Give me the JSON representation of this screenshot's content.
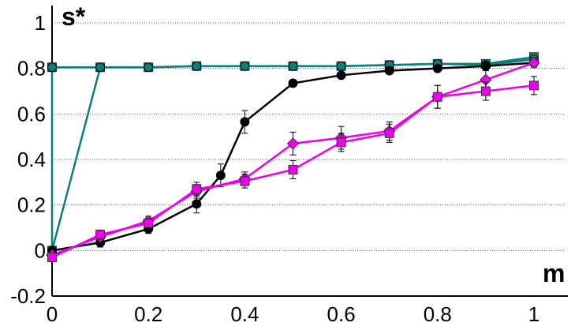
{
  "chart_data": {
    "type": "line",
    "title": "",
    "xlabel": "m",
    "ylabel": "s*",
    "xlim": [
      0,
      1
    ],
    "ylim": [
      -0.2,
      1
    ],
    "grid": true,
    "x_ticks": [
      "0",
      "0.2",
      "0.4",
      "0.6",
      "0.8",
      "1"
    ],
    "y_ticks": [
      "-0.2",
      "0",
      "0.2",
      "0.4",
      "0.6",
      "0.8",
      "1"
    ],
    "y_tick_values": [
      -0.2,
      0,
      0.2,
      0.4,
      0.6,
      0.8,
      1
    ],
    "x_tick_values": [
      0,
      0.2,
      0.4,
      0.6,
      0.8,
      1
    ],
    "series": [
      {
        "color": "#0a7f7a",
        "marker": "square",
        "x": [
          0,
          0,
          0.1,
          0.2,
          0.3,
          0.4,
          0.5,
          0.6,
          0.7,
          0.8,
          0.9,
          1
        ],
        "y": [
          0.805,
          0.0,
          0.805,
          0.805,
          0.81,
          0.81,
          0.81,
          0.81,
          0.815,
          0.82,
          0.82,
          0.85
        ],
        "err": []
      },
      {
        "color": "#0a7f7a",
        "marker": "circle",
        "x": [
          0,
          0.1,
          0.2,
          0.3,
          0.4,
          0.5,
          0.6,
          0.7,
          0.8,
          0.9,
          1
        ],
        "y": [
          0.805,
          0.805,
          0.805,
          0.81,
          0.81,
          0.81,
          0.81,
          0.815,
          0.82,
          0.815,
          0.84
        ],
        "err": []
      },
      {
        "color": "#000000",
        "marker": "circle",
        "x": [
          0,
          0.1,
          0.2,
          0.3,
          0.35,
          0.4,
          0.5,
          0.6,
          0.7,
          0.8,
          0.9,
          1
        ],
        "y": [
          0.0,
          0.035,
          0.095,
          0.205,
          0.33,
          0.565,
          0.735,
          0.77,
          0.79,
          0.8,
          0.81,
          0.825
        ],
        "err": [
          0.01,
          0.02,
          0.02,
          0.04,
          0.05,
          0.05,
          0.01,
          0.01,
          0.01,
          0.01,
          0.01,
          0.01
        ]
      },
      {
        "color": "#ee00ee",
        "marker": "diamond",
        "x": [
          0,
          0.1,
          0.2,
          0.3,
          0.4,
          0.5,
          0.6,
          0.7,
          0.8,
          0.9,
          1
        ],
        "y": [
          -0.02,
          0.06,
          0.13,
          0.26,
          0.315,
          0.47,
          0.495,
          0.525,
          0.675,
          0.75,
          0.825
        ],
        "err": [
          0.01,
          0.02,
          0.02,
          0.03,
          0.03,
          0.05,
          0.05,
          0.04,
          0.05,
          0.04,
          0.02
        ]
      },
      {
        "color": "#ee00ee",
        "marker": "square",
        "x": [
          0,
          0.1,
          0.2,
          0.3,
          0.4,
          0.5,
          0.6,
          0.7,
          0.8,
          0.9,
          1
        ],
        "y": [
          -0.03,
          0.07,
          0.12,
          0.27,
          0.305,
          0.355,
          0.475,
          0.515,
          0.675,
          0.7,
          0.725
        ],
        "err": [
          0.01,
          0.02,
          0.02,
          0.03,
          0.03,
          0.04,
          0.04,
          0.04,
          0.05,
          0.04,
          0.04
        ]
      }
    ]
  }
}
